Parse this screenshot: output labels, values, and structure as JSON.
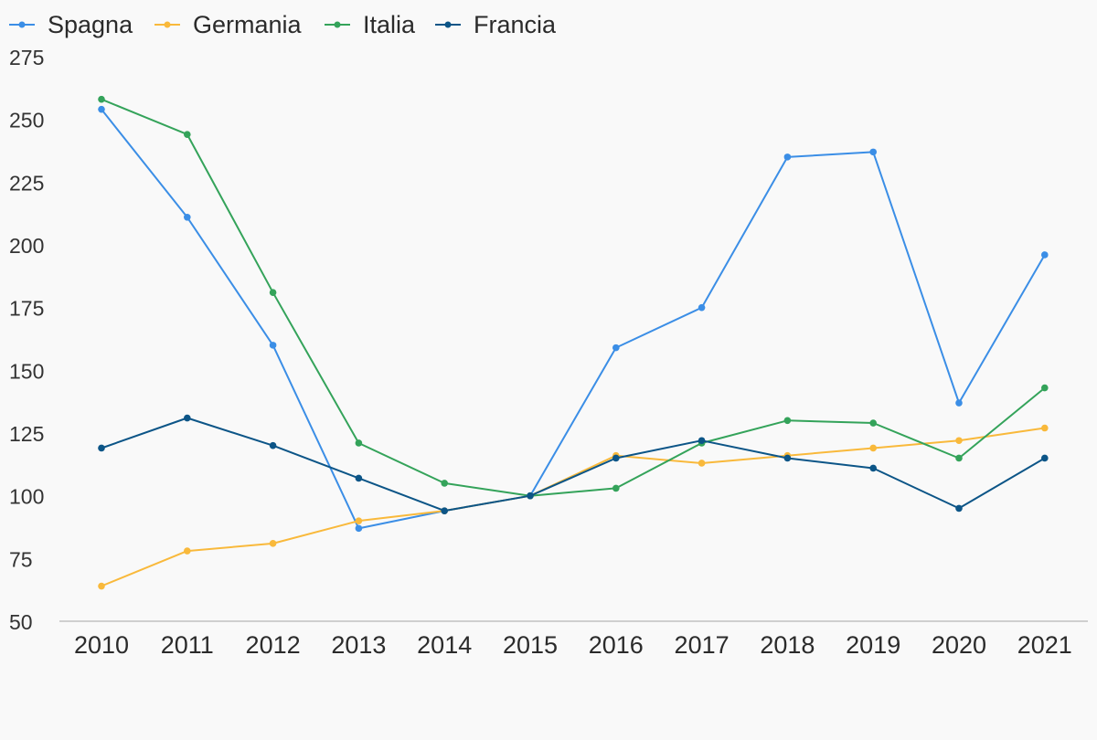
{
  "chart_data": {
    "type": "line",
    "title": "",
    "xlabel": "",
    "ylabel": "",
    "categories": [
      "2010",
      "2011",
      "2012",
      "2013",
      "2014",
      "2015",
      "2016",
      "2017",
      "2018",
      "2019",
      "2020",
      "2021"
    ],
    "ylim": [
      50,
      275
    ],
    "yticks": [
      "50",
      "75",
      "100",
      "125",
      "150",
      "175",
      "200",
      "225",
      "250",
      "275"
    ],
    "grid": false,
    "legend_position": "top-left",
    "series": [
      {
        "name": "Spagna",
        "color": "#3b8ee6",
        "values": [
          254,
          211,
          160,
          87,
          94,
          100,
          159,
          175,
          235,
          237,
          137,
          196
        ]
      },
      {
        "name": "Germania",
        "color": "#f9b93b",
        "values": [
          64,
          78,
          81,
          90,
          94,
          100,
          116,
          113,
          116,
          119,
          122,
          127
        ]
      },
      {
        "name": "Italia",
        "color": "#34a35a",
        "values": [
          258,
          244,
          181,
          121,
          105,
          100,
          103,
          121,
          130,
          129,
          115,
          143
        ]
      },
      {
        "name": "Francia",
        "color": "#0c5587",
        "values": [
          119,
          131,
          120,
          107,
          94,
          100,
          115,
          122,
          115,
          111,
          95,
          115
        ]
      }
    ]
  }
}
